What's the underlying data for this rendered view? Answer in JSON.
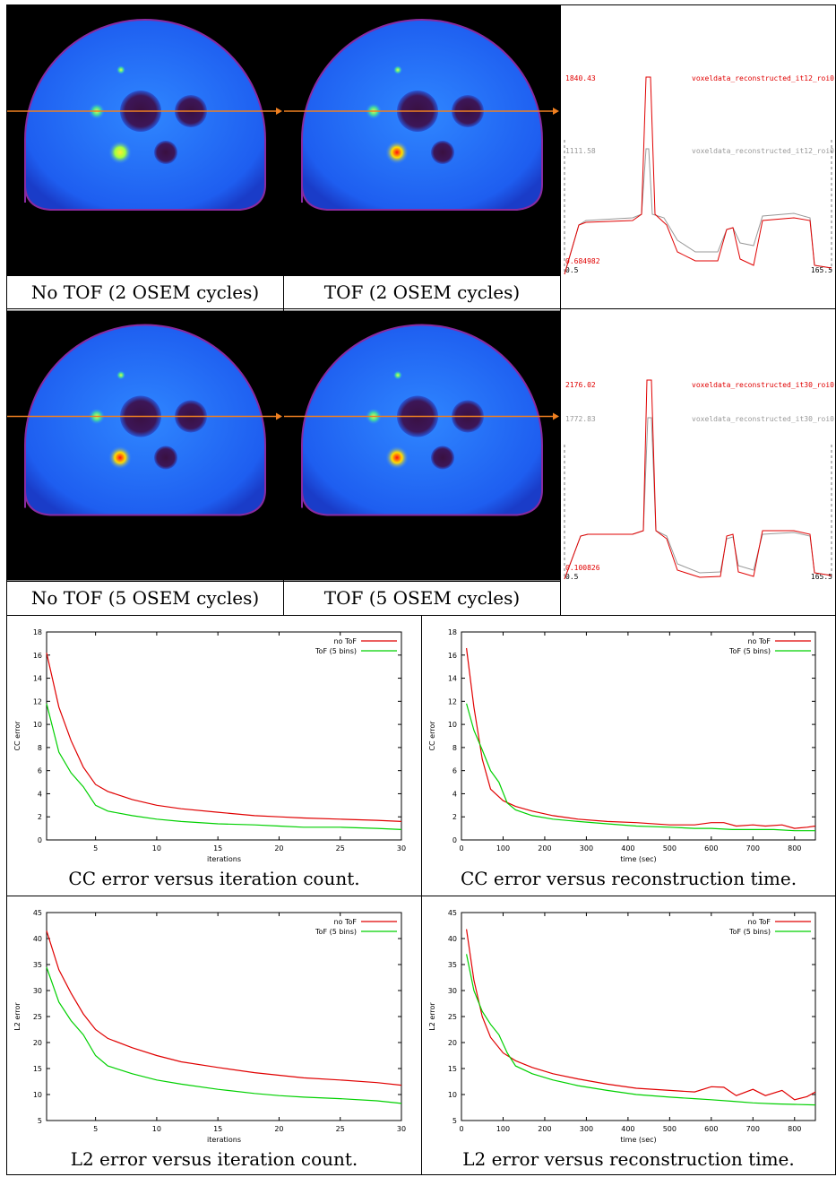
{
  "captions": {
    "r1c1": "No TOF (2 OSEM cycles)",
    "r1c2": "TOF (2 OSEM cycles)",
    "r2c1": "No TOF (5 OSEM cycles)",
    "r2c2": "TOF (5 OSEM cycles)",
    "p1": "CC error versus iteration count.",
    "p2": "CC error versus reconstruction time.",
    "p3": "L2 error versus iteration count.",
    "p4": "L2 error versus reconstruction time."
  },
  "profiles": [
    {
      "red_max": "1840.43",
      "grey_max": "1111.58",
      "red_min": "0.684982",
      "red_name": "voxeldata_reconstructed_it12_roi0",
      "grey_name": "voxeldata_reconstructed_it12_roi0",
      "x_min": "0.5",
      "x_max": "165.5"
    },
    {
      "red_max": "2176.02",
      "grey_max": "1772.83",
      "red_min": "0.100826",
      "red_name": "voxeldata_reconstructed_it30_roi0",
      "grey_name": "voxeldata_reconstructed_it30_roi0",
      "x_min": "0.5",
      "x_max": "165.5"
    }
  ],
  "colors": {
    "red": "#e00000",
    "green": "#00d000",
    "grey": "#999999",
    "line": "#f08020"
  },
  "chart_data": [
    {
      "type": "line",
      "xlabel": "iterations",
      "ylabel": "CC error",
      "xlim": [
        1,
        30
      ],
      "ylim": [
        0,
        18
      ],
      "xticks": [
        5,
        10,
        15,
        20,
        25,
        30
      ],
      "yticks": [
        0,
        2,
        4,
        6,
        8,
        10,
        12,
        14,
        16,
        18
      ],
      "legend": "top-right",
      "series": [
        {
          "name": "no ToF",
          "color": "#e00000",
          "x": [
            1,
            2,
            3,
            4,
            5,
            6,
            8,
            10,
            12,
            15,
            18,
            20,
            22,
            25,
            28,
            30
          ],
          "y": [
            16.2,
            11.5,
            8.6,
            6.3,
            4.8,
            4.2,
            3.5,
            3.0,
            2.7,
            2.4,
            2.1,
            2.0,
            1.9,
            1.8,
            1.7,
            1.6
          ]
        },
        {
          "name": "ToF (5 bins)",
          "color": "#00d000",
          "x": [
            1,
            2,
            3,
            4,
            5,
            6,
            8,
            10,
            12,
            15,
            18,
            20,
            22,
            25,
            28,
            30
          ],
          "y": [
            11.8,
            7.6,
            5.8,
            4.6,
            3.0,
            2.5,
            2.1,
            1.8,
            1.6,
            1.4,
            1.3,
            1.2,
            1.1,
            1.1,
            1.0,
            0.9
          ]
        }
      ]
    },
    {
      "type": "line",
      "xlabel": "time (sec)",
      "ylabel": "CC error",
      "xlim": [
        0,
        850
      ],
      "ylim": [
        0,
        18
      ],
      "xticks": [
        0,
        100,
        200,
        300,
        400,
        500,
        600,
        700,
        800
      ],
      "yticks": [
        0,
        2,
        4,
        6,
        8,
        10,
        12,
        14,
        16,
        18
      ],
      "legend": "top-right",
      "series": [
        {
          "name": "no ToF",
          "color": "#e00000",
          "x": [
            12,
            30,
            50,
            70,
            100,
            130,
            170,
            220,
            280,
            350,
            420,
            500,
            560,
            600,
            630,
            660,
            700,
            730,
            770,
            800,
            830,
            850
          ],
          "y": [
            16.6,
            11.5,
            7.0,
            4.4,
            3.4,
            2.9,
            2.5,
            2.1,
            1.8,
            1.6,
            1.5,
            1.3,
            1.3,
            1.5,
            1.5,
            1.2,
            1.3,
            1.2,
            1.3,
            1.0,
            1.1,
            1.2
          ]
        },
        {
          "name": "ToF (5 bins)",
          "color": "#00d000",
          "x": [
            12,
            30,
            50,
            70,
            90,
            110,
            130,
            170,
            220,
            280,
            350,
            420,
            500,
            560,
            600,
            650,
            700,
            750,
            800,
            850
          ],
          "y": [
            11.8,
            9.5,
            7.8,
            6.0,
            5.0,
            3.2,
            2.6,
            2.1,
            1.8,
            1.6,
            1.4,
            1.2,
            1.1,
            1.0,
            1.0,
            0.9,
            0.9,
            0.9,
            0.8,
            0.8
          ]
        }
      ]
    },
    {
      "type": "line",
      "xlabel": "iterations",
      "ylabel": "L2 error",
      "xlim": [
        1,
        30
      ],
      "ylim": [
        5,
        45
      ],
      "xticks": [
        5,
        10,
        15,
        20,
        25,
        30
      ],
      "yticks": [
        5,
        10,
        15,
        20,
        25,
        30,
        35,
        40,
        45
      ],
      "legend": "top-right",
      "series": [
        {
          "name": "no ToF",
          "color": "#e00000",
          "x": [
            1,
            2,
            3,
            4,
            5,
            6,
            8,
            10,
            12,
            15,
            18,
            20,
            22,
            25,
            28,
            30
          ],
          "y": [
            41.5,
            34.0,
            29.5,
            25.5,
            22.5,
            20.8,
            19.0,
            17.5,
            16.3,
            15.2,
            14.2,
            13.7,
            13.2,
            12.8,
            12.3,
            11.8
          ]
        },
        {
          "name": "ToF (5 bins)",
          "color": "#00d000",
          "x": [
            1,
            2,
            3,
            4,
            5,
            6,
            8,
            10,
            12,
            15,
            18,
            20,
            22,
            25,
            28,
            30
          ],
          "y": [
            34.5,
            27.8,
            24.2,
            21.5,
            17.5,
            15.5,
            14.0,
            12.8,
            12.0,
            11.0,
            10.2,
            9.8,
            9.5,
            9.2,
            8.8,
            8.3
          ]
        }
      ]
    },
    {
      "type": "line",
      "xlabel": "time (sec)",
      "ylabel": "L2 error",
      "xlim": [
        0,
        850
      ],
      "ylim": [
        5,
        45
      ],
      "xticks": [
        0,
        100,
        200,
        300,
        400,
        500,
        600,
        700,
        800
      ],
      "yticks": [
        5,
        10,
        15,
        20,
        25,
        30,
        35,
        40,
        45
      ],
      "legend": "top-right",
      "series": [
        {
          "name": "no ToF",
          "color": "#e00000",
          "x": [
            12,
            30,
            50,
            70,
            100,
            130,
            170,
            220,
            280,
            350,
            420,
            500,
            560,
            600,
            630,
            660,
            700,
            730,
            770,
            800,
            830,
            850
          ],
          "y": [
            41.8,
            32.0,
            25.0,
            21.0,
            18.0,
            16.5,
            15.2,
            14.0,
            13.0,
            12.0,
            11.2,
            10.8,
            10.5,
            11.5,
            11.4,
            9.8,
            11.0,
            9.8,
            10.8,
            9.0,
            9.6,
            10.5
          ]
        },
        {
          "name": "ToF (5 bins)",
          "color": "#00d000",
          "x": [
            12,
            30,
            50,
            70,
            90,
            110,
            130,
            170,
            220,
            280,
            350,
            420,
            500,
            560,
            600,
            650,
            700,
            750,
            800,
            850
          ],
          "y": [
            37.0,
            30.0,
            26.0,
            23.5,
            21.5,
            18.0,
            15.5,
            14.0,
            12.8,
            11.7,
            10.8,
            10.0,
            9.5,
            9.2,
            9.0,
            8.7,
            8.4,
            8.2,
            8.1,
            8.0
          ]
        }
      ]
    }
  ]
}
